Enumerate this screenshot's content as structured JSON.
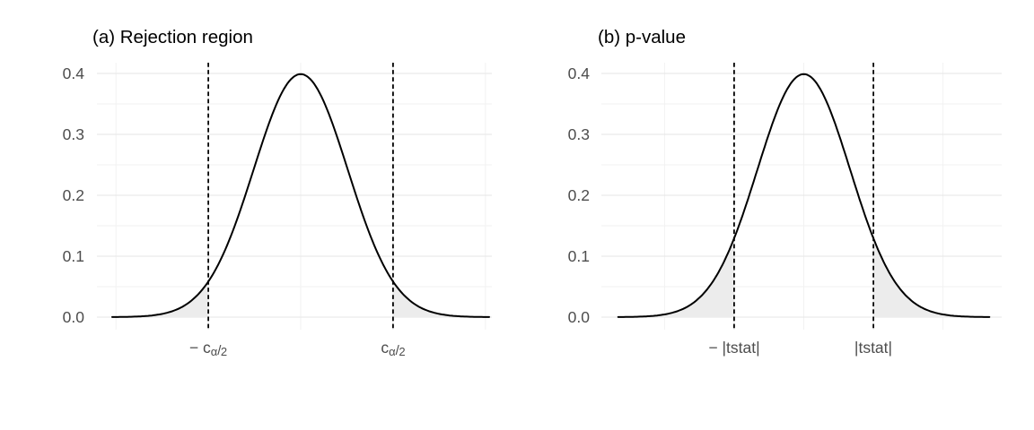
{
  "figure": {
    "background": "#FFFFFF"
  },
  "style": {
    "tick_label_color": "#4D4D4D",
    "title_color": "#000000"
  },
  "panels": [
    {
      "title": "(a) Rejection region",
      "y_tick_labels": [
        "0.4",
        "0.3",
        "0.2",
        "0.1",
        "0.0"
      ],
      "x_labels": [
        {
          "minus": "− ",
          "base": "c",
          "sub_alpha": "α",
          "slash": "/",
          "sub_two": "2"
        },
        {
          "minus": "",
          "base": "c",
          "sub_alpha": "α",
          "slash": "/",
          "sub_two": "2"
        }
      ]
    },
    {
      "title": "(b) p-value",
      "y_tick_labels": [
        "0.4",
        "0.3",
        "0.2",
        "0.1",
        "0.0"
      ],
      "x_labels": [
        {
          "text": "− |tstat|"
        },
        {
          "text": "|tstat|"
        }
      ]
    }
  ],
  "chart_data": [
    {
      "type": "line",
      "title": "(a) Rejection region",
      "curve": "standard normal density",
      "x_range": [
        -4,
        4
      ],
      "ylim": [
        -0.02,
        0.42
      ],
      "y_major_ticks": [
        0,
        0.1,
        0.2,
        0.3,
        0.4
      ],
      "y_minor_ticks": [
        0.05,
        0.15,
        0.25,
        0.35
      ],
      "x_major_gridlines": [
        -1.96,
        1.96
      ],
      "x_minor_gridlines": [
        -3.92,
        0,
        3.92
      ],
      "x_tick_positions": [
        -1.96,
        1.96
      ],
      "x_tick_text": [
        "− c_(α/2)",
        "c_(α/2)"
      ],
      "vlines": {
        "x": [
          -1.96,
          1.96
        ],
        "style": "dashed",
        "color": "#000000"
      },
      "shaded_regions": [
        {
          "from": -4,
          "to": -1.96
        },
        {
          "from": 1.96,
          "to": 4
        }
      ],
      "sample_points": {
        "x": [
          -4,
          -3,
          -2,
          -1.96,
          -1.5,
          -1,
          0,
          1,
          1.5,
          1.96,
          2,
          3,
          4
        ],
        "density": [
          0.0001,
          0.0044,
          0.054,
          0.0584,
          0.1295,
          0.242,
          0.3989,
          0.242,
          0.1295,
          0.0584,
          0.054,
          0.0044,
          0.0001
        ]
      },
      "peak_density": 0.3989,
      "curve_color": "#000000",
      "shade_fill": "#ECECEC",
      "grid_major_color": "#E6E6E6",
      "grid_minor_color": "#F2F2F2",
      "legend": "none"
    },
    {
      "type": "line",
      "title": "(b) p-value",
      "curve": "standard normal density",
      "x_range": [
        -4,
        4
      ],
      "ylim": [
        -0.02,
        0.42
      ],
      "y_major_ticks": [
        0,
        0.1,
        0.2,
        0.3,
        0.4
      ],
      "y_minor_ticks": [
        0.05,
        0.15,
        0.25,
        0.35
      ],
      "x_major_gridlines": [
        -1.5,
        1.5
      ],
      "x_minor_gridlines": [
        -3,
        0,
        3
      ],
      "x_tick_positions": [
        -1.5,
        1.5
      ],
      "x_tick_text": [
        "− |tstat|",
        "|tstat|"
      ],
      "vlines": {
        "x": [
          -1.5,
          1.5
        ],
        "style": "dashed",
        "color": "#000000"
      },
      "shaded_regions": [
        {
          "from": -4,
          "to": -1.5
        },
        {
          "from": 1.5,
          "to": 4
        }
      ],
      "sample_points": {
        "x": [
          -4,
          -3,
          -2,
          -1.5,
          -1,
          0,
          1,
          1.5,
          2,
          3,
          4
        ],
        "density": [
          0.0001,
          0.0044,
          0.054,
          0.1295,
          0.242,
          0.3989,
          0.242,
          0.1295,
          0.054,
          0.0044,
          0.0001
        ]
      },
      "peak_density": 0.3989,
      "curve_color": "#000000",
      "shade_fill": "#ECECEC",
      "grid_major_color": "#E6E6E6",
      "grid_minor_color": "#F2F2F2",
      "legend": "none"
    }
  ]
}
